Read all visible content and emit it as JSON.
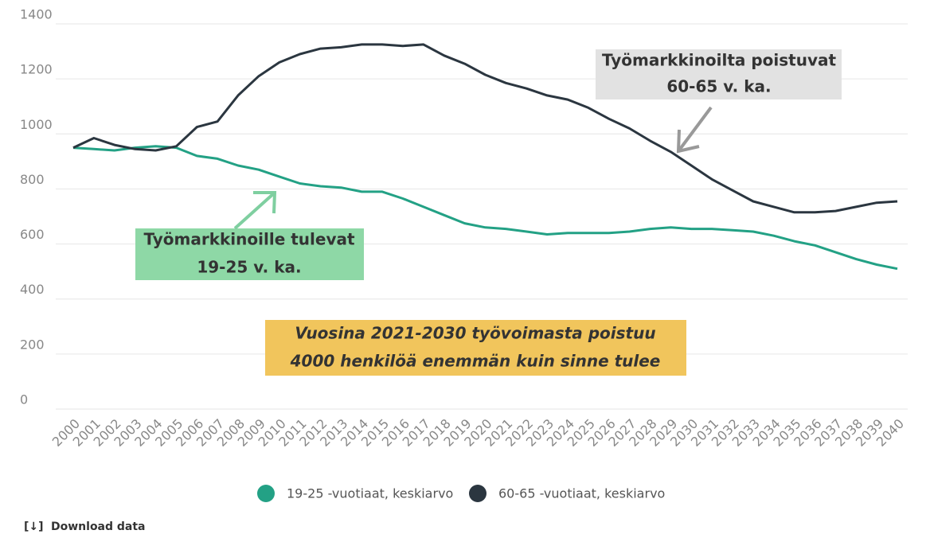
{
  "chart_data": {
    "type": "line",
    "categories": [
      "2000",
      "2001",
      "2002",
      "2003",
      "2004",
      "2005",
      "2006",
      "2007",
      "2008",
      "2009",
      "2010",
      "2011",
      "2012",
      "2013",
      "2014",
      "2015",
      "2016",
      "2017",
      "2018",
      "2019",
      "2020",
      "2021",
      "2022",
      "2023",
      "2024",
      "2025",
      "2026",
      "2027",
      "2028",
      "2029",
      "2030",
      "2031",
      "2032",
      "2033",
      "2034",
      "2035",
      "2036",
      "2037",
      "2038",
      "2039",
      "2040"
    ],
    "series": [
      {
        "name": "19-25 -vuotiaat, keskiarvo",
        "color": "#23a185",
        "values": [
          950,
          945,
          940,
          950,
          955,
          950,
          920,
          910,
          885,
          870,
          845,
          820,
          810,
          805,
          790,
          790,
          765,
          735,
          705,
          675,
          660,
          655,
          645,
          635,
          640,
          640,
          640,
          645,
          655,
          660,
          655,
          655,
          650,
          645,
          630,
          610,
          595,
          570,
          545,
          525,
          510
        ]
      },
      {
        "name": "60-65 -vuotiaat, keskiarvo",
        "color": "#2b3640",
        "values": [
          950,
          985,
          960,
          945,
          940,
          955,
          1025,
          1045,
          1140,
          1210,
          1260,
          1290,
          1310,
          1315,
          1325,
          1325,
          1320,
          1325,
          1285,
          1255,
          1215,
          1185,
          1165,
          1140,
          1125,
          1095,
          1055,
          1020,
          975,
          935,
          885,
          835,
          795,
          755,
          735,
          715,
          715,
          720,
          735,
          750,
          755
        ]
      }
    ],
    "ylim": [
      0,
      1400
    ],
    "yticks": [
      0,
      200,
      400,
      600,
      800,
      1000,
      1200,
      1400
    ],
    "grid": true,
    "annotations": [
      {
        "lines": [
          "Työmarkkinoille tulevat",
          "19-25 v. ka."
        ],
        "color": "#8ed8a6"
      },
      {
        "lines": [
          "Työmarkkinoilta poistuvat",
          "60-65 v. ka."
        ],
        "color": "#e2e2e2"
      },
      {
        "lines": [
          "Vuosina 2021-2030 työvoimasta poistuu",
          "4000 henkilöä enemmän kuin sinne tulee"
        ],
        "color": "#f1c55c"
      }
    ],
    "download": "Download data"
  }
}
